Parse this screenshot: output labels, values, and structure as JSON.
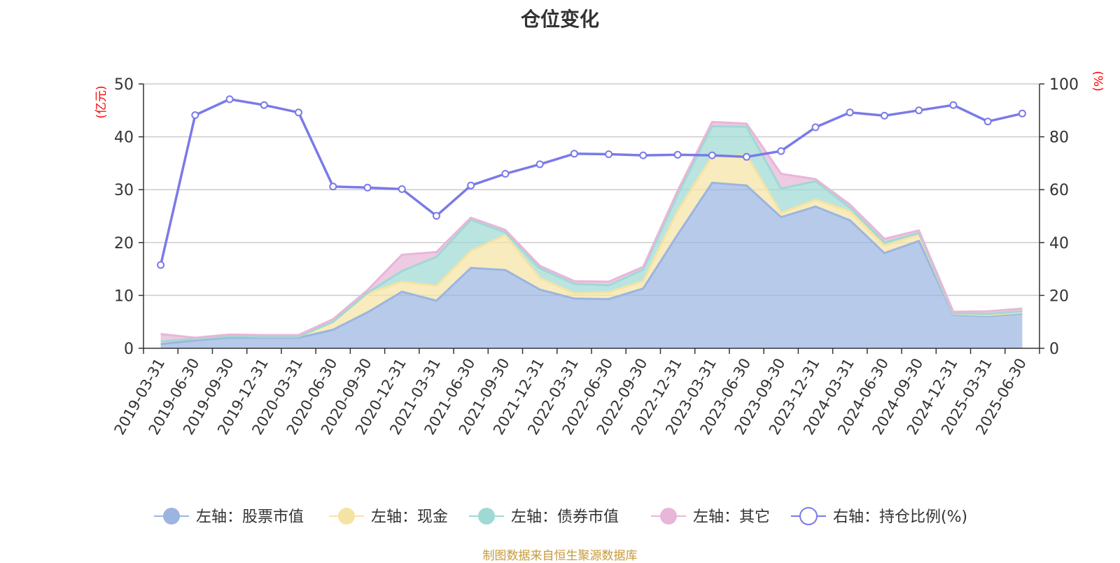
{
  "chart_data": {
    "type": "area",
    "title": "仓位变化",
    "left_axis_label": "(亿元)",
    "right_axis_label": "(%)",
    "left_ylim": [
      0,
      50
    ],
    "right_ylim": [
      0,
      100
    ],
    "left_ticks": [
      "0",
      "10",
      "20",
      "30",
      "40",
      "50"
    ],
    "right_ticks": [
      "0",
      "20",
      "40",
      "60",
      "80",
      "100"
    ],
    "grid": true,
    "legend_position": "bottom",
    "categories": [
      "2019-03-31",
      "2019-06-30",
      "2019-09-30",
      "2019-12-31",
      "2020-03-31",
      "2020-06-30",
      "2020-09-30",
      "2020-12-31",
      "2021-03-31",
      "2021-06-30",
      "2021-09-30",
      "2021-12-31",
      "2022-03-31",
      "2022-06-30",
      "2022-09-30",
      "2022-12-31",
      "2023-03-31",
      "2023-06-30",
      "2023-09-30",
      "2023-12-31",
      "2024-03-31",
      "2024-06-30",
      "2024-09-30",
      "2024-12-31",
      "2025-03-31",
      "2025-06-30"
    ],
    "series": [
      {
        "name": "左轴：股票市值",
        "axis": "left",
        "kind": "stacked-area",
        "color": "#9bb5e0",
        "values": [
          0.8,
          1.5,
          2.0,
          2.0,
          2.0,
          3.5,
          6.8,
          10.7,
          9.0,
          15.2,
          14.8,
          11.1,
          9.4,
          9.3,
          11.3,
          21.5,
          31.3,
          30.8,
          24.8,
          26.8,
          24.2,
          18.0,
          20.3,
          6.3,
          6.1,
          6.6
        ]
      },
      {
        "name": "左轴：现金",
        "axis": "left",
        "kind": "stacked-area",
        "color": "#f5e3a3",
        "values": [
          0.5,
          0.3,
          0.3,
          0.2,
          0.2,
          1.5,
          3.5,
          1.9,
          2.8,
          3.2,
          6.6,
          2.2,
          1.0,
          1.3,
          1.4,
          4.5,
          5.0,
          5.7,
          0.8,
          1.3,
          1.7,
          1.4,
          1.2,
          0.2,
          0.2,
          0.2
        ]
      },
      {
        "name": "左轴：债券市值",
        "axis": "left",
        "kind": "stacked-area",
        "color": "#9fd9d4",
        "values": [
          0.0,
          0.0,
          0.0,
          0.0,
          0.0,
          0.0,
          0.2,
          2.0,
          5.5,
          5.9,
          0.5,
          1.8,
          1.8,
          1.3,
          2.2,
          3.1,
          5.7,
          5.4,
          4.6,
          3.5,
          0.7,
          0.6,
          0.3,
          0.1,
          0.2,
          0.2
        ]
      },
      {
        "name": "左轴：其它",
        "axis": "left",
        "kind": "stacked-area",
        "color": "#e8b6d8",
        "values": [
          1.4,
          0.2,
          0.3,
          0.3,
          0.3,
          0.5,
          0.5,
          3.1,
          0.9,
          0.4,
          0.5,
          0.5,
          0.5,
          0.7,
          0.5,
          0.7,
          0.8,
          0.6,
          2.8,
          0.4,
          0.6,
          0.7,
          0.5,
          0.3,
          0.5,
          0.5
        ]
      },
      {
        "name": "右轴：持仓比例(%)",
        "axis": "right",
        "kind": "line",
        "color": "#7a7ae8",
        "values": [
          31.5,
          88.2,
          94.2,
          92.0,
          89.2,
          61.2,
          60.8,
          60.2,
          50.1,
          61.6,
          66.0,
          69.6,
          73.6,
          73.4,
          73.0,
          73.2,
          73.0,
          72.4,
          74.6,
          83.6,
          89.2,
          88.0,
          90.0,
          92.0,
          85.8,
          88.8
        ]
      }
    ]
  },
  "colors": {
    "stock": "#9bb5e0",
    "cash": "#f5e3a3",
    "bond": "#9fd9d4",
    "other": "#e8b6d8",
    "ratio": "#7a7ae8",
    "axis_label_red": "#ff0000",
    "source": "#c79a3a"
  },
  "source_note": "制图数据来自恒生聚源数据库"
}
